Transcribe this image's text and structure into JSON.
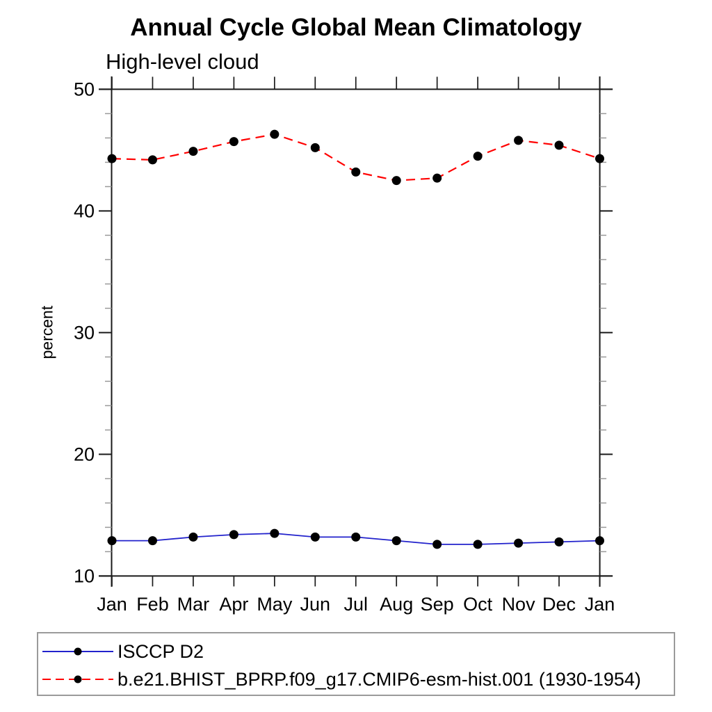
{
  "chart": {
    "title": "Annual Cycle Global Mean Climatology",
    "subtitle": "High-level cloud",
    "ylabel": "percent"
  },
  "chart_data": {
    "type": "line",
    "title": "Annual Cycle Global Mean Climatology",
    "subtitle": "High-level cloud",
    "xlabel": "",
    "ylabel": "percent",
    "categories": [
      "Jan",
      "Feb",
      "Mar",
      "Apr",
      "May",
      "Jun",
      "Jul",
      "Aug",
      "Sep",
      "Oct",
      "Nov",
      "Dec",
      "Jan"
    ],
    "ylim": [
      10,
      50
    ],
    "yticks_major": [
      10,
      20,
      30,
      40,
      50
    ],
    "ytick_minor_step": 2,
    "grid": false,
    "legend_position": "bottom-left",
    "marker": {
      "shape": "circle",
      "color": "#000000"
    },
    "series": [
      {
        "name": "ISCCP D2",
        "line_style": "solid",
        "color": "#2222cc",
        "values": [
          12.9,
          12.9,
          13.2,
          13.4,
          13.5,
          13.2,
          13.2,
          12.9,
          12.6,
          12.6,
          12.7,
          12.8,
          12.9
        ]
      },
      {
        "name": "b.e21.BHIST_BPRP.f09_g17.CMIP6-esm-hist.001 (1930-1954)",
        "line_style": "dashed",
        "color": "#ff0000",
        "values": [
          44.3,
          44.2,
          44.9,
          45.7,
          46.3,
          45.2,
          43.2,
          42.5,
          42.7,
          44.5,
          45.8,
          45.4,
          44.3
        ]
      }
    ]
  }
}
